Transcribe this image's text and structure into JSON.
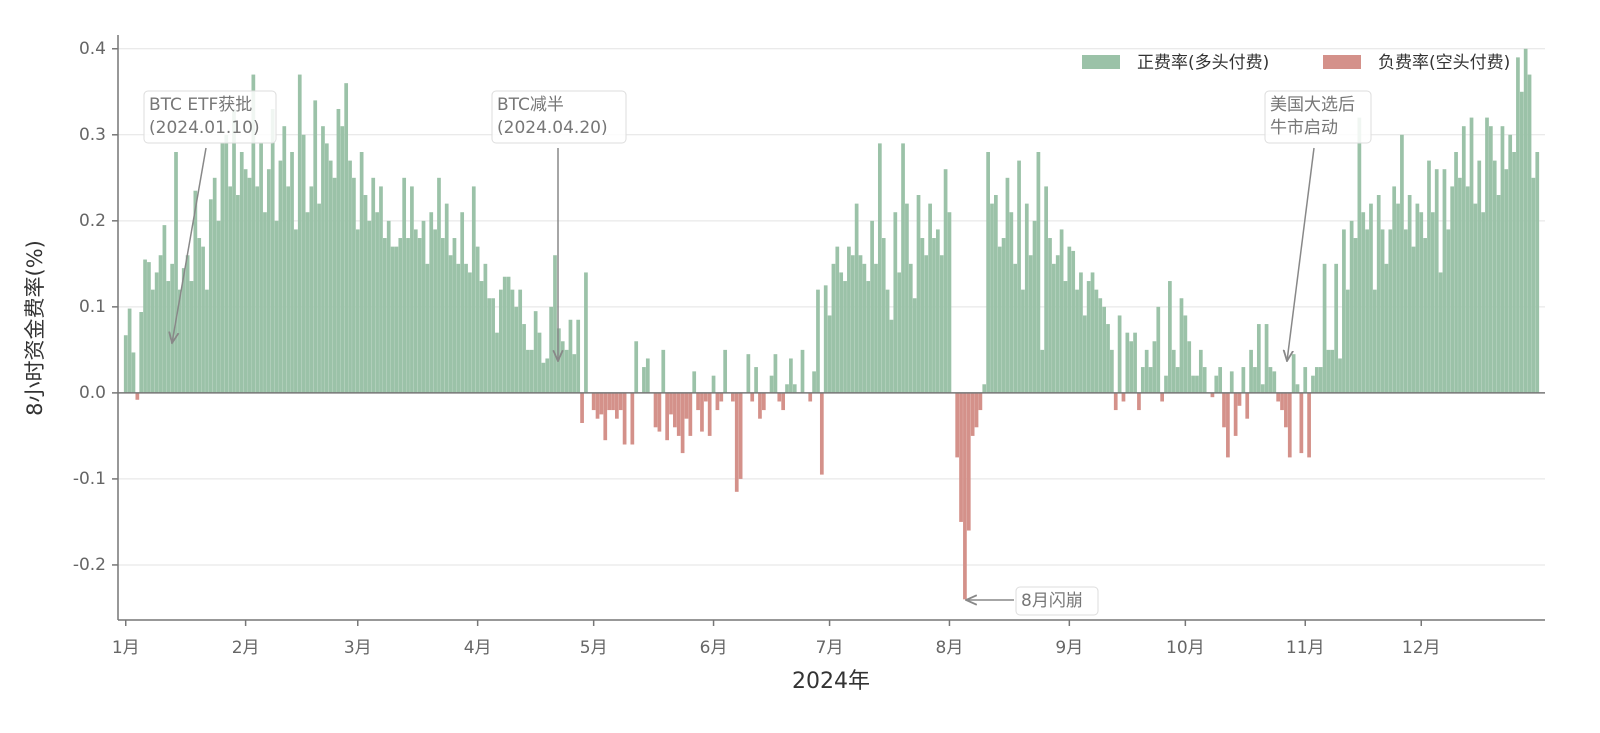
{
  "chart_data": {
    "type": "bar",
    "y_label": "8小时资金费率(%)",
    "x_label": "2024年",
    "legend": [
      {
        "name": "正费率(多头付费)",
        "color": "#9bc2a8"
      },
      {
        "name": "负费率(空头付费)",
        "color": "#d4918a"
      }
    ],
    "legend_position": "upper right",
    "grid": true,
    "xlim": [
      -2,
      367
    ],
    "xticks": [
      {
        "value": 0,
        "label": "1月"
      },
      {
        "value": 31,
        "label": "2月"
      },
      {
        "value": 60,
        "label": "3月"
      },
      {
        "value": 91,
        "label": "4月"
      },
      {
        "value": 121,
        "label": "5月"
      },
      {
        "value": 152,
        "label": "6月"
      },
      {
        "value": 182,
        "label": "7月"
      },
      {
        "value": 213,
        "label": "8月"
      },
      {
        "value": 244,
        "label": "9月"
      },
      {
        "value": 274,
        "label": "10月"
      },
      {
        "value": 305,
        "label": "11月"
      },
      {
        "value": 335,
        "label": "12月"
      }
    ],
    "ylim": [
      -0.264,
      0.416
    ],
    "yticks": [
      -0.2,
      -0.1,
      {
        "value": 0,
        "label": "0.0"
      },
      0.1,
      0.2,
      0.3,
      0.4
    ],
    "annotations": [
      {
        "lines": [
          "BTC ETF获批",
          "(2024.01.10)"
        ]
      },
      {
        "lines": [
          "BTC减半",
          "(2024.04.20)"
        ]
      },
      {
        "lines": [
          "美国大选后",
          "牛市启动"
        ]
      },
      {
        "lines": [
          "8月闪崩"
        ]
      }
    ],
    "values": [
      0.067,
      0.098,
      0.047,
      -0.008,
      0.094,
      0.155,
      0.152,
      0.12,
      0.14,
      0.16,
      0.195,
      0.13,
      0.15,
      0.28,
      0.12,
      0.145,
      0.16,
      0.13,
      0.235,
      0.18,
      0.17,
      0.12,
      0.225,
      0.25,
      0.2,
      0.29,
      0.3,
      0.24,
      0.33,
      0.23,
      0.28,
      0.26,
      0.25,
      0.37,
      0.24,
      0.29,
      0.21,
      0.26,
      0.33,
      0.2,
      0.27,
      0.31,
      0.24,
      0.28,
      0.19,
      0.37,
      0.3,
      0.21,
      0.24,
      0.34,
      0.22,
      0.31,
      0.29,
      0.27,
      0.25,
      0.33,
      0.31,
      0.36,
      0.27,
      0.25,
      0.19,
      0.28,
      0.23,
      0.2,
      0.25,
      0.21,
      0.24,
      0.18,
      0.2,
      0.17,
      0.17,
      0.18,
      0.25,
      0.18,
      0.24,
      0.19,
      0.18,
      0.2,
      0.15,
      0.21,
      0.19,
      0.25,
      0.18,
      0.22,
      0.16,
      0.18,
      0.15,
      0.21,
      0.15,
      0.14,
      0.24,
      0.17,
      0.13,
      0.15,
      0.11,
      0.11,
      0.07,
      0.12,
      0.135,
      0.135,
      0.12,
      0.1,
      0.12,
      0.08,
      0.05,
      0.05,
      0.095,
      0.07,
      0.035,
      0.04,
      0.1,
      0.16,
      0.075,
      0.06,
      0.05,
      0.085,
      0.045,
      0.085,
      -0.035,
      0.14,
      0,
      -0.02,
      -0.03,
      -0.025,
      -0.055,
      -0.02,
      -0.02,
      -0.03,
      -0.02,
      -0.06,
      0,
      -0.06,
      0.06,
      0,
      0.03,
      0.04,
      0,
      -0.04,
      -0.045,
      0.05,
      -0.055,
      -0.025,
      -0.04,
      -0.05,
      -0.07,
      -0.03,
      -0.05,
      0.025,
      -0.02,
      -0.045,
      -0.01,
      -0.05,
      0.02,
      -0.02,
      -0.01,
      0.05,
      0,
      -0.01,
      -0.115,
      -0.1,
      0,
      0.045,
      -0.01,
      0.03,
      -0.03,
      -0.02,
      0,
      0.02,
      0.045,
      -0.01,
      -0.02,
      0.01,
      0.04,
      0.01,
      0,
      0.05,
      0,
      -0.01,
      0.025,
      0.12,
      -0.095,
      0.125,
      0.09,
      0.15,
      0.17,
      0.14,
      0.13,
      0.17,
      0.16,
      0.22,
      0.16,
      0.15,
      0.13,
      0.2,
      0.15,
      0.29,
      0.18,
      0.12,
      0.085,
      0.21,
      0.14,
      0.29,
      0.22,
      0.15,
      0.11,
      0.23,
      0.18,
      0.16,
      0.22,
      0.18,
      0.19,
      0.16,
      0.26,
      0.21,
      0,
      -0.075,
      -0.15,
      -0.24,
      -0.16,
      -0.05,
      -0.04,
      -0.02,
      0.01,
      0.28,
      0.22,
      0.23,
      0.17,
      0.18,
      0.25,
      0.21,
      0.15,
      0.27,
      0.12,
      0.22,
      0.16,
      0.2,
      0.28,
      0.05,
      0.24,
      0.18,
      0.15,
      0.16,
      0.19,
      0.13,
      0.17,
      0.165,
      0.12,
      0.14,
      0.09,
      0.13,
      0.14,
      0.12,
      0.11,
      0.1,
      0.08,
      0.05,
      -0.02,
      0.09,
      -0.01,
      0.07,
      0.06,
      0.07,
      -0.02,
      0.03,
      0.05,
      0.03,
      0.06,
      0.1,
      -0.01,
      0.02,
      0.13,
      0.05,
      0.03,
      0.11,
      0.09,
      0.06,
      0.02,
      0.02,
      0.05,
      0.03,
      0,
      -0.005,
      0.02,
      0.03,
      -0.04,
      -0.075,
      0.025,
      -0.05,
      -0.015,
      0.03,
      -0.03,
      0.05,
      0.03,
      0.08,
      0.01,
      0.08,
      0.03,
      0.025,
      -0.01,
      -0.02,
      -0.04,
      -0.075,
      0.045,
      0.01,
      -0.07,
      0.03,
      -0.075,
      0.02,
      0.03,
      0.03,
      0.15,
      0.05,
      0.05,
      0.15,
      0.04,
      0.19,
      0.12,
      0.2,
      0.18,
      0.32,
      0.21,
      0.19,
      0.22,
      0.12,
      0.23,
      0.19,
      0.15,
      0.19,
      0.24,
      0.22,
      0.3,
      0.19,
      0.23,
      0.17,
      0.22,
      0.21,
      0.18,
      0.27,
      0.21,
      0.26,
      0.14,
      0.26,
      0.19,
      0.24,
      0.28,
      0.25,
      0.31,
      0.24,
      0.32,
      0.22,
      0.27,
      0.21,
      0.32,
      0.31,
      0.27,
      0.23,
      0.31,
      0.26,
      0.3,
      0.28,
      0.39,
      0.35,
      0.4,
      0.37,
      0.25,
      0.28
    ]
  }
}
